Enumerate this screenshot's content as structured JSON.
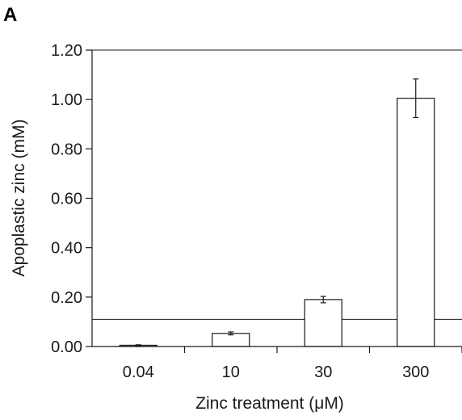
{
  "panel_label": "A",
  "colors": {
    "axis": "#1a1a1a",
    "bar_fill": "#ffffff",
    "bar_stroke": "#1a1a1a",
    "reference_line": "#1a1a1a"
  },
  "chart_data": {
    "type": "bar",
    "title": "",
    "xlabel": "Zinc treatment (μM)",
    "ylabel": "Apoplastic zinc (mM)",
    "categories": [
      "0.04",
      "10",
      "30",
      "300"
    ],
    "series": [
      {
        "values": [
          0.005,
          0.053,
          0.19,
          1.005
        ],
        "error": [
          0.002,
          0.006,
          0.013,
          0.078
        ]
      }
    ],
    "ylim": [
      0,
      1.2
    ],
    "yticks": [
      0.0,
      0.2,
      0.4,
      0.6,
      0.8,
      1.0,
      1.2
    ],
    "ytick_labels": [
      "0.00",
      "0.20",
      "0.40",
      "0.60",
      "0.80",
      "1.00",
      "1.20"
    ],
    "reference_lines": [
      0.11,
      1.2
    ],
    "grid": false,
    "legend": "none"
  }
}
